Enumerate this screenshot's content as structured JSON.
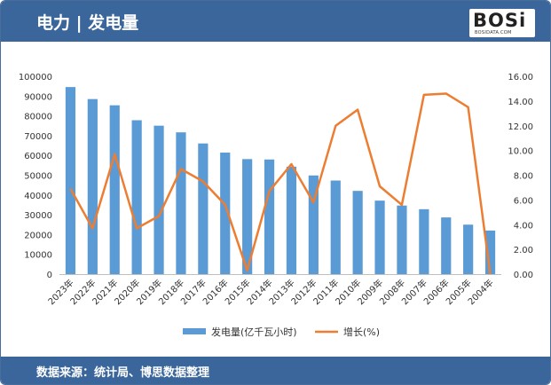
{
  "header": {
    "title": "电力 | 发电量"
  },
  "logo": {
    "main": "BOSi",
    "sub": "BOSIDATA.COM"
  },
  "footer": {
    "source": "数据来源：统计局、博思数据整理"
  },
  "colors": {
    "bar": "#5b9bd5",
    "line": "#ed7d31",
    "header": "#3b669b"
  },
  "chart_data": {
    "type": "bar",
    "categories": [
      "2023年",
      "2022年",
      "2021年",
      "2020年",
      "2019年",
      "2018年",
      "2017年",
      "2016年",
      "2015年",
      "2014年",
      "2013年",
      "2012年",
      "2011年",
      "2010年",
      "2009年",
      "2008年",
      "2007年",
      "2006年",
      "2005年",
      "2004年"
    ],
    "series": [
      {
        "name": "发电量(亿千瓦小时)",
        "type": "bar",
        "axis": "left",
        "values": [
          94564,
          88487,
          85342,
          77791,
          75034,
          71661,
          66044,
          61425,
          58146,
          57945,
          54316,
          49876,
          47306,
          42072,
          37147,
          34669,
          32816,
          28657,
          25003,
          22033
        ]
      },
      {
        "name": "增长(%)",
        "type": "line",
        "axis": "right",
        "values": [
          6.9,
          3.7,
          9.7,
          3.7,
          4.7,
          8.5,
          7.5,
          5.6,
          0.3,
          6.7,
          8.9,
          5.8,
          12.0,
          13.3,
          7.1,
          5.6,
          14.5,
          14.6,
          13.5,
          0.0
        ]
      }
    ],
    "yleft": {
      "min": 0,
      "max": 100000,
      "step": 10000,
      "ticks": [
        "0",
        "10000",
        "20000",
        "30000",
        "40000",
        "50000",
        "60000",
        "70000",
        "80000",
        "90000",
        "100000"
      ]
    },
    "yright": {
      "min": 0,
      "max": 16,
      "step": 2,
      "ticks": [
        "0.00",
        "2.00",
        "4.00",
        "6.00",
        "8.00",
        "10.00",
        "12.00",
        "14.00",
        "16.00"
      ]
    },
    "legend": {
      "placement": "bottom",
      "items": [
        "发电量(亿千瓦小时)",
        "增长(%)"
      ]
    },
    "grid": false
  }
}
